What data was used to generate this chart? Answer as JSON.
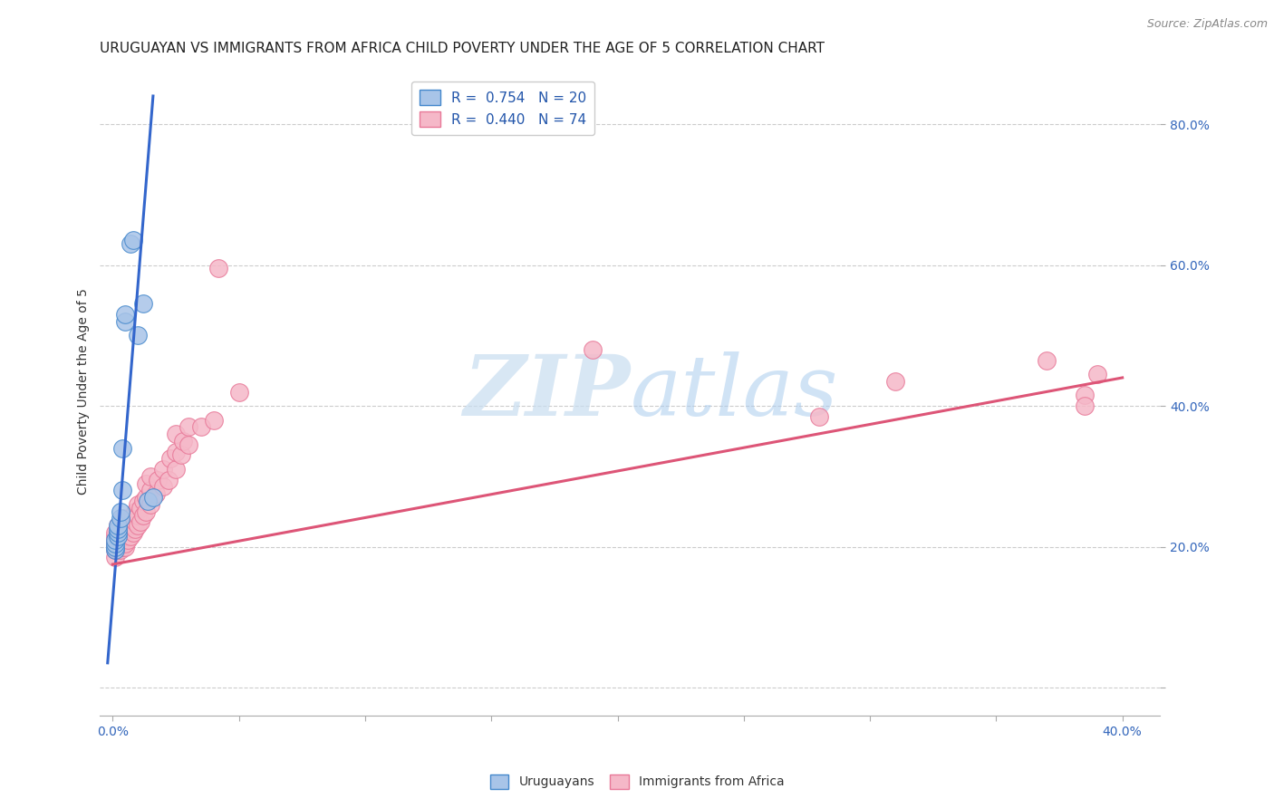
{
  "title": "URUGUAYAN VS IMMIGRANTS FROM AFRICA CHILD POVERTY UNDER THE AGE OF 5 CORRELATION CHART",
  "source": "Source: ZipAtlas.com",
  "ylabel": "Child Poverty Under the Age of 5",
  "xlim": [
    -0.005,
    0.415
  ],
  "ylim": [
    -0.04,
    0.88
  ],
  "ytick_positions": [
    0.0,
    0.2,
    0.4,
    0.6,
    0.8
  ],
  "ytick_labels": [
    "",
    "20.0%",
    "40.0%",
    "60.0%",
    "80.0%"
  ],
  "xtick_positions": [
    0.0,
    0.05,
    0.1,
    0.15,
    0.2,
    0.25,
    0.3,
    0.35,
    0.4
  ],
  "xtick_labels": [
    "0.0%",
    "",
    "",
    "",
    "",
    "",
    "",
    "",
    "40.0%"
  ],
  "color_uruguayan_fill": "#a8c4e8",
  "color_uruguayan_edge": "#4488cc",
  "color_africa_fill": "#f5b8c8",
  "color_africa_edge": "#e87898",
  "line_color_uruguayan": "#3366cc",
  "line_color_africa": "#dd5577",
  "watermark_color": "#c8ddf0",
  "uruguayan_x": [
    0.001,
    0.001,
    0.001,
    0.001,
    0.002,
    0.002,
    0.002,
    0.002,
    0.003,
    0.003,
    0.004,
    0.004,
    0.005,
    0.005,
    0.007,
    0.008,
    0.01,
    0.012,
    0.014,
    0.016
  ],
  "uruguayan_y": [
    0.195,
    0.2,
    0.205,
    0.21,
    0.215,
    0.22,
    0.225,
    0.23,
    0.24,
    0.25,
    0.28,
    0.34,
    0.52,
    0.53,
    0.63,
    0.635,
    0.5,
    0.545,
    0.265,
    0.27
  ],
  "uru_line_x1": -0.002,
  "uru_line_y1": 0.035,
  "uru_line_x2": 0.016,
  "uru_line_y2": 0.84,
  "africa_line_x1": 0.0,
  "africa_line_y1": 0.175,
  "africa_line_x2": 0.4,
  "africa_line_y2": 0.44,
  "africa_x": [
    0.001,
    0.001,
    0.001,
    0.001,
    0.001,
    0.001,
    0.001,
    0.002,
    0.002,
    0.002,
    0.002,
    0.002,
    0.003,
    0.003,
    0.003,
    0.003,
    0.004,
    0.004,
    0.004,
    0.004,
    0.005,
    0.005,
    0.005,
    0.005,
    0.005,
    0.006,
    0.006,
    0.006,
    0.007,
    0.007,
    0.007,
    0.008,
    0.008,
    0.008,
    0.009,
    0.009,
    0.009,
    0.01,
    0.01,
    0.01,
    0.011,
    0.011,
    0.012,
    0.012,
    0.013,
    0.013,
    0.013,
    0.015,
    0.015,
    0.015,
    0.017,
    0.018,
    0.02,
    0.02,
    0.022,
    0.023,
    0.025,
    0.025,
    0.025,
    0.027,
    0.028,
    0.03,
    0.03,
    0.035,
    0.04,
    0.042,
    0.05,
    0.19,
    0.28,
    0.31,
    0.37,
    0.385,
    0.385,
    0.39
  ],
  "africa_y": [
    0.185,
    0.195,
    0.2,
    0.205,
    0.21,
    0.215,
    0.22,
    0.195,
    0.2,
    0.21,
    0.22,
    0.23,
    0.195,
    0.205,
    0.215,
    0.225,
    0.2,
    0.21,
    0.22,
    0.24,
    0.2,
    0.205,
    0.215,
    0.22,
    0.23,
    0.21,
    0.225,
    0.235,
    0.215,
    0.225,
    0.24,
    0.22,
    0.23,
    0.245,
    0.225,
    0.235,
    0.25,
    0.23,
    0.245,
    0.26,
    0.235,
    0.255,
    0.245,
    0.265,
    0.25,
    0.27,
    0.29,
    0.26,
    0.28,
    0.3,
    0.275,
    0.295,
    0.285,
    0.31,
    0.295,
    0.325,
    0.31,
    0.335,
    0.36,
    0.33,
    0.35,
    0.345,
    0.37,
    0.37,
    0.38,
    0.595,
    0.42,
    0.48,
    0.385,
    0.435,
    0.465,
    0.415,
    0.4,
    0.445
  ],
  "title_fontsize": 11,
  "label_fontsize": 10,
  "tick_fontsize": 10,
  "legend_fontsize": 11
}
